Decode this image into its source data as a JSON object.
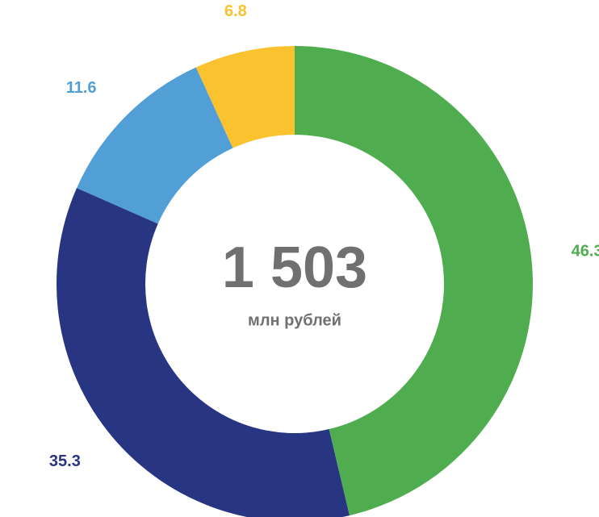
{
  "chart_data": {
    "type": "donut",
    "categories": [
      null,
      null,
      null,
      null
    ],
    "series": [
      {
        "values": [
          46.3,
          35.3,
          11.6,
          6.8
        ]
      }
    ],
    "colors": [
      "#50ad4f",
      "#283583",
      "#529fd8",
      "#fbc22f"
    ],
    "center_label": "1 503",
    "center_sublabel": "млн рублей"
  }
}
